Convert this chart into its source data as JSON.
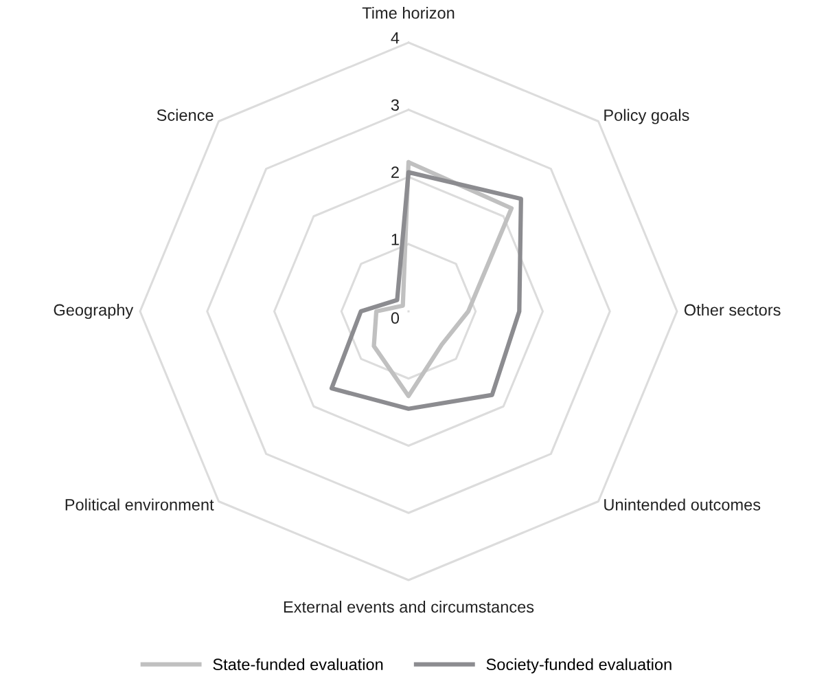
{
  "chart_data": {
    "type": "radar",
    "categories": [
      "Time horizon",
      "Policy goals",
      "Other sectors",
      "Unintended outcomes",
      "External events and circumstances",
      "Political environment",
      "Geography",
      "Science"
    ],
    "series": [
      {
        "name": "State-funded evaluation",
        "color": "#c0c0c0",
        "values": [
          2.22,
          2.17,
          0.89,
          0.7,
          1.26,
          0.73,
          0.48,
          0.12
        ]
      },
      {
        "name": "Society-funded evaluation",
        "color": "#8c8c90",
        "values": [
          2.07,
          2.37,
          1.65,
          1.76,
          1.45,
          1.62,
          0.71,
          0.24
        ]
      }
    ],
    "ylim": [
      0,
      4
    ],
    "yticks": [
      0,
      1,
      2,
      3,
      4
    ],
    "grid": true,
    "legend": "bottom"
  }
}
